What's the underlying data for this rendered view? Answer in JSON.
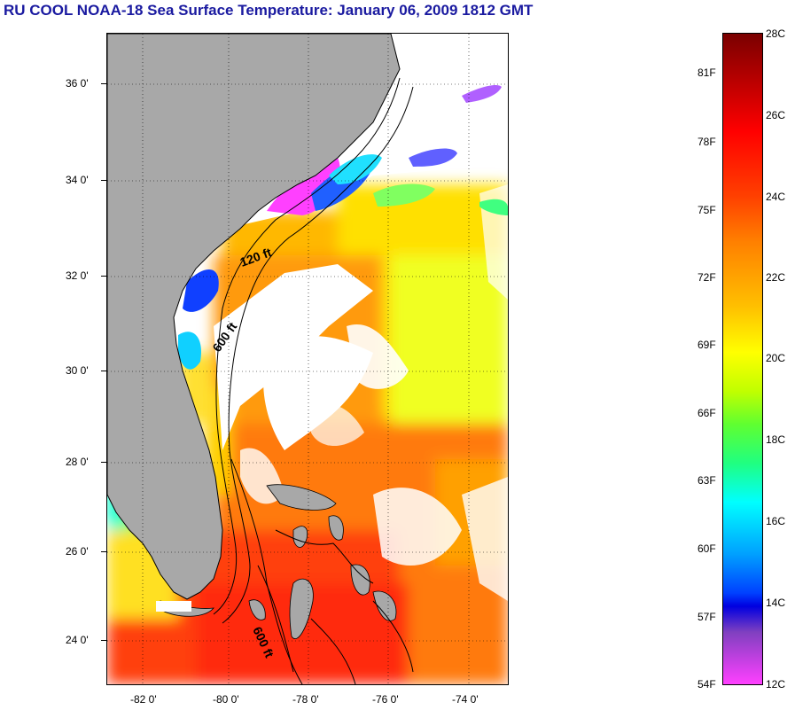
{
  "title": "RU COOL  NOAA-18  Sea Surface Temperature:  January 06, 2009 1812 GMT",
  "map": {
    "lat_labels": [
      "36 0'",
      "34 0'",
      "32 0'",
      "30 0'",
      "28 0'",
      "26 0'",
      "24 0'"
    ],
    "lon_labels": [
      "-82 0'",
      "-80 0'",
      "-78 0'",
      "-76 0'",
      "-74 0'"
    ],
    "contours": [
      "120 ft",
      "600 ft",
      "600 ft"
    ]
  },
  "colorbar": {
    "fahrenheit": [
      "81F",
      "78F",
      "75F",
      "72F",
      "69F",
      "66F",
      "63F",
      "60F",
      "57F",
      "54F"
    ],
    "celsius": [
      "28C",
      "26C",
      "24C",
      "22C",
      "20C",
      "18C",
      "16C",
      "14C",
      "12C"
    ]
  },
  "colors": {
    "title": "#1a1aa0",
    "land": "#a8a8a8",
    "cloud": "#ffffff"
  }
}
